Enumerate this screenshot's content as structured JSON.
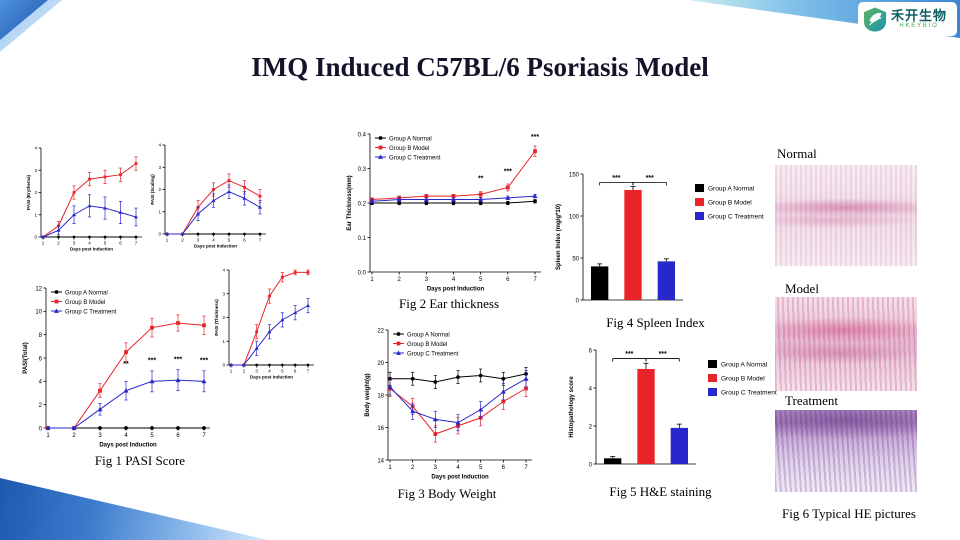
{
  "slide": {
    "title": "IMQ Induced C57BL/6 Psoriasis Model",
    "logo": {
      "name_cn": "禾开生物",
      "name_en": "HKEYBIO"
    }
  },
  "captions": {
    "fig1": "Fig 1 PASI Score",
    "fig2": "Fig 2 Ear thickness",
    "fig3": "Fig 3 Body Weight",
    "fig4": "Fig 4 Spleen Index",
    "fig5": "Fig 5 H&E staining",
    "fig6": "Fig 6 Typical HE pictures"
  },
  "histology": {
    "items": [
      {
        "label": "Normal"
      },
      {
        "label": "Model"
      },
      {
        "label": "Treatment"
      }
    ]
  },
  "chart_data": [
    {
      "id": "pasi-erythema",
      "type": "line",
      "x": [
        1,
        2,
        3,
        4,
        5,
        6,
        7
      ],
      "xlabel": "Days post Induction",
      "ylabel": "PASI (Erythema)",
      "ylim": [
        0,
        4
      ],
      "yticks": [
        0,
        1,
        2,
        3,
        4
      ],
      "legend": "none",
      "series": [
        {
          "name": "Group A Normal",
          "color": "#000000",
          "marker": "circle",
          "values": [
            0,
            0,
            0,
            0,
            0,
            0,
            0
          ],
          "err": [
            0,
            0,
            0,
            0,
            0,
            0,
            0
          ]
        },
        {
          "name": "Group B Model",
          "color": "#e8232a",
          "marker": "square",
          "values": [
            0,
            0.5,
            2.0,
            2.6,
            2.7,
            2.8,
            3.3
          ],
          "err": [
            0,
            0.2,
            0.3,
            0.3,
            0.3,
            0.3,
            0.3
          ]
        },
        {
          "name": "Group C Treatment",
          "color": "#2727cc",
          "marker": "triangle",
          "values": [
            0,
            0.3,
            1.0,
            1.4,
            1.3,
            1.1,
            0.9
          ],
          "err": [
            0,
            0.2,
            0.4,
            0.5,
            0.5,
            0.5,
            0.4
          ]
        }
      ]
    },
    {
      "id": "pasi-scaling",
      "type": "line",
      "x": [
        1,
        2,
        3,
        4,
        5,
        6,
        7
      ],
      "xlabel": "Days post Induction",
      "ylabel": "PASI (Scaling)",
      "ylim": [
        0,
        4
      ],
      "yticks": [
        0,
        1,
        2,
        3,
        4
      ],
      "legend": "none",
      "series": [
        {
          "name": "Group A Normal",
          "color": "#000000",
          "marker": "circle",
          "values": [
            0,
            0,
            0,
            0,
            0,
            0,
            0
          ],
          "err": [
            0,
            0,
            0,
            0,
            0,
            0,
            0
          ]
        },
        {
          "name": "Group B Model",
          "color": "#e8232a",
          "marker": "square",
          "values": [
            0,
            0,
            1.2,
            2.0,
            2.4,
            2.1,
            1.7
          ],
          "err": [
            0,
            0,
            0.3,
            0.3,
            0.3,
            0.3,
            0.3
          ]
        },
        {
          "name": "Group C Treatment",
          "color": "#2727cc",
          "marker": "triangle",
          "values": [
            0,
            0,
            0.9,
            1.5,
            1.9,
            1.6,
            1.2
          ],
          "err": [
            0,
            0,
            0.3,
            0.3,
            0.3,
            0.3,
            0.3
          ]
        }
      ]
    },
    {
      "id": "pasi-total",
      "type": "line",
      "x": [
        1,
        2,
        3,
        4,
        5,
        6,
        7
      ],
      "xlabel": "Days post Induction",
      "ylabel": "PASI(Total)",
      "ylim": [
        0,
        12
      ],
      "yticks": [
        0,
        2,
        4,
        6,
        8,
        10,
        12
      ],
      "legend": "inside",
      "annotations": [
        {
          "x": 4,
          "y": 5.3,
          "text": "**"
        },
        {
          "x": 5,
          "y": 5.6,
          "text": "***"
        },
        {
          "x": 6,
          "y": 5.7,
          "text": "***"
        },
        {
          "x": 7,
          "y": 5.6,
          "text": "***"
        }
      ],
      "series": [
        {
          "name": "Group A Normal",
          "color": "#000000",
          "marker": "circle",
          "values": [
            0,
            0,
            0,
            0,
            0,
            0,
            0
          ],
          "err": [
            0,
            0,
            0,
            0,
            0,
            0,
            0
          ]
        },
        {
          "name": "Group B Model",
          "color": "#e8232a",
          "marker": "square",
          "values": [
            0,
            0,
            3.2,
            6.5,
            8.6,
            9.0,
            8.8
          ],
          "err": [
            0,
            0,
            0.6,
            0.8,
            0.8,
            0.7,
            0.8
          ]
        },
        {
          "name": "Group C Treatment",
          "color": "#2727cc",
          "marker": "triangle",
          "values": [
            0,
            0,
            1.6,
            3.2,
            4.0,
            4.1,
            4.0
          ],
          "err": [
            0,
            0,
            0.5,
            0.8,
            0.9,
            0.9,
            0.9
          ]
        }
      ]
    },
    {
      "id": "pasi-thickness",
      "type": "line",
      "x": [
        1,
        2,
        3,
        4,
        5,
        6,
        7
      ],
      "xlabel": "Days post Induction",
      "ylabel": "PASI (Thickness)",
      "ylim": [
        0,
        4
      ],
      "yticks": [
        0,
        1,
        2,
        3,
        4
      ],
      "legend": "none",
      "series": [
        {
          "name": "Group A Normal",
          "color": "#000000",
          "marker": "circle",
          "values": [
            0,
            0,
            0,
            0,
            0,
            0,
            0
          ],
          "err": [
            0,
            0,
            0,
            0,
            0,
            0,
            0
          ]
        },
        {
          "name": "Group B Model",
          "color": "#e8232a",
          "marker": "square",
          "values": [
            0,
            0,
            1.4,
            2.9,
            3.7,
            3.9,
            3.9
          ],
          "err": [
            0,
            0,
            0.3,
            0.3,
            0.2,
            0.1,
            0.1
          ]
        },
        {
          "name": "Group C Treatment",
          "color": "#2727cc",
          "marker": "triangle",
          "values": [
            0,
            0,
            0.7,
            1.4,
            1.9,
            2.2,
            2.5
          ],
          "err": [
            0,
            0,
            0.3,
            0.3,
            0.3,
            0.3,
            0.3
          ]
        }
      ]
    },
    {
      "id": "ear-thickness",
      "type": "line",
      "x": [
        1,
        2,
        3,
        4,
        5,
        6,
        7
      ],
      "xlabel": "Days post Induction",
      "ylabel": "Ear Thickness(mm)",
      "ylim": [
        0,
        0.4
      ],
      "yticks": [
        0,
        0.1,
        0.2,
        0.3,
        0.4
      ],
      "ytick_labels": [
        "0.0",
        "0.1",
        "0.2",
        "0.3",
        "0.4"
      ],
      "legend": "inside",
      "annotations": [
        {
          "x": 5,
          "y": 0.265,
          "text": "**"
        },
        {
          "x": 6,
          "y": 0.285,
          "text": "***"
        },
        {
          "x": 7,
          "y": 0.385,
          "text": "***"
        }
      ],
      "series": [
        {
          "name": "Group A Normal",
          "color": "#000000",
          "marker": "circle",
          "values": [
            0.2,
            0.2,
            0.2,
            0.2,
            0.2,
            0.2,
            0.205
          ],
          "err": [
            0.005,
            0.005,
            0.005,
            0.005,
            0.005,
            0.005,
            0.005
          ]
        },
        {
          "name": "Group B Model",
          "color": "#e8232a",
          "marker": "square",
          "values": [
            0.21,
            0.215,
            0.22,
            0.22,
            0.225,
            0.245,
            0.35
          ],
          "err": [
            0.005,
            0.005,
            0.005,
            0.005,
            0.008,
            0.01,
            0.015
          ]
        },
        {
          "name": "Group C Treatment",
          "color": "#2727cc",
          "marker": "triangle",
          "values": [
            0.205,
            0.21,
            0.21,
            0.21,
            0.21,
            0.215,
            0.22
          ],
          "err": [
            0.005,
            0.005,
            0.005,
            0.005,
            0.005,
            0.005,
            0.005
          ]
        }
      ]
    },
    {
      "id": "body-weight",
      "type": "line",
      "x": [
        1,
        2,
        3,
        4,
        5,
        6,
        7
      ],
      "xlabel": "Days post Induction",
      "ylabel": "Body weight(g)",
      "ylim": [
        14,
        22
      ],
      "yticks": [
        14,
        16,
        18,
        20,
        22
      ],
      "legend": "inside",
      "series": [
        {
          "name": "Group A Normal",
          "color": "#000000",
          "marker": "circle",
          "values": [
            19.0,
            19.0,
            18.8,
            19.1,
            19.2,
            19.0,
            19.3
          ],
          "err": [
            0.4,
            0.4,
            0.4,
            0.4,
            0.4,
            0.4,
            0.4
          ]
        },
        {
          "name": "Group B Model",
          "color": "#e8232a",
          "marker": "square",
          "values": [
            18.4,
            17.3,
            15.6,
            16.1,
            16.6,
            17.6,
            18.4
          ],
          "err": [
            0.5,
            0.5,
            0.5,
            0.5,
            0.5,
            0.5,
            0.5
          ]
        },
        {
          "name": "Group C Treatment",
          "color": "#2727cc",
          "marker": "triangle",
          "values": [
            18.5,
            17.0,
            16.5,
            16.3,
            17.1,
            18.2,
            19.0
          ],
          "err": [
            0.5,
            0.5,
            0.5,
            0.5,
            0.5,
            0.5,
            0.5
          ]
        }
      ]
    },
    {
      "id": "spleen-index",
      "type": "bar",
      "ylabel": "Spleen Index (mg/g*10)",
      "ylim": [
        0,
        150
      ],
      "yticks": [
        0,
        50,
        100,
        150
      ],
      "categories": [
        "Group A Normal",
        "Group B Model",
        "Group C Treatment"
      ],
      "colors": [
        "#000000",
        "#e8232a",
        "#2727cc"
      ],
      "values": [
        40,
        131,
        46
      ],
      "errors": [
        3,
        4,
        3
      ],
      "legend": "right",
      "sig": [
        {
          "from": 0,
          "to": 1,
          "y": 140,
          "text": "***"
        },
        {
          "from": 1,
          "to": 2,
          "y": 140,
          "text": "***"
        }
      ]
    },
    {
      "id": "histopathology",
      "type": "bar",
      "ylabel": "Histopathology score",
      "ylim": [
        0,
        6
      ],
      "yticks": [
        0,
        2,
        4,
        6
      ],
      "categories": [
        "Group A Normal",
        "Group B Model",
        "Group C Treatment"
      ],
      "colors": [
        "#000000",
        "#e8232a",
        "#2727cc"
      ],
      "values": [
        0.3,
        5.0,
        1.9
      ],
      "errors": [
        0.1,
        0.3,
        0.2
      ],
      "legend": "right",
      "sig": [
        {
          "from": 0,
          "to": 1,
          "y": 5.55,
          "text": "***"
        },
        {
          "from": 1,
          "to": 2,
          "y": 5.55,
          "text": "***"
        }
      ]
    }
  ]
}
